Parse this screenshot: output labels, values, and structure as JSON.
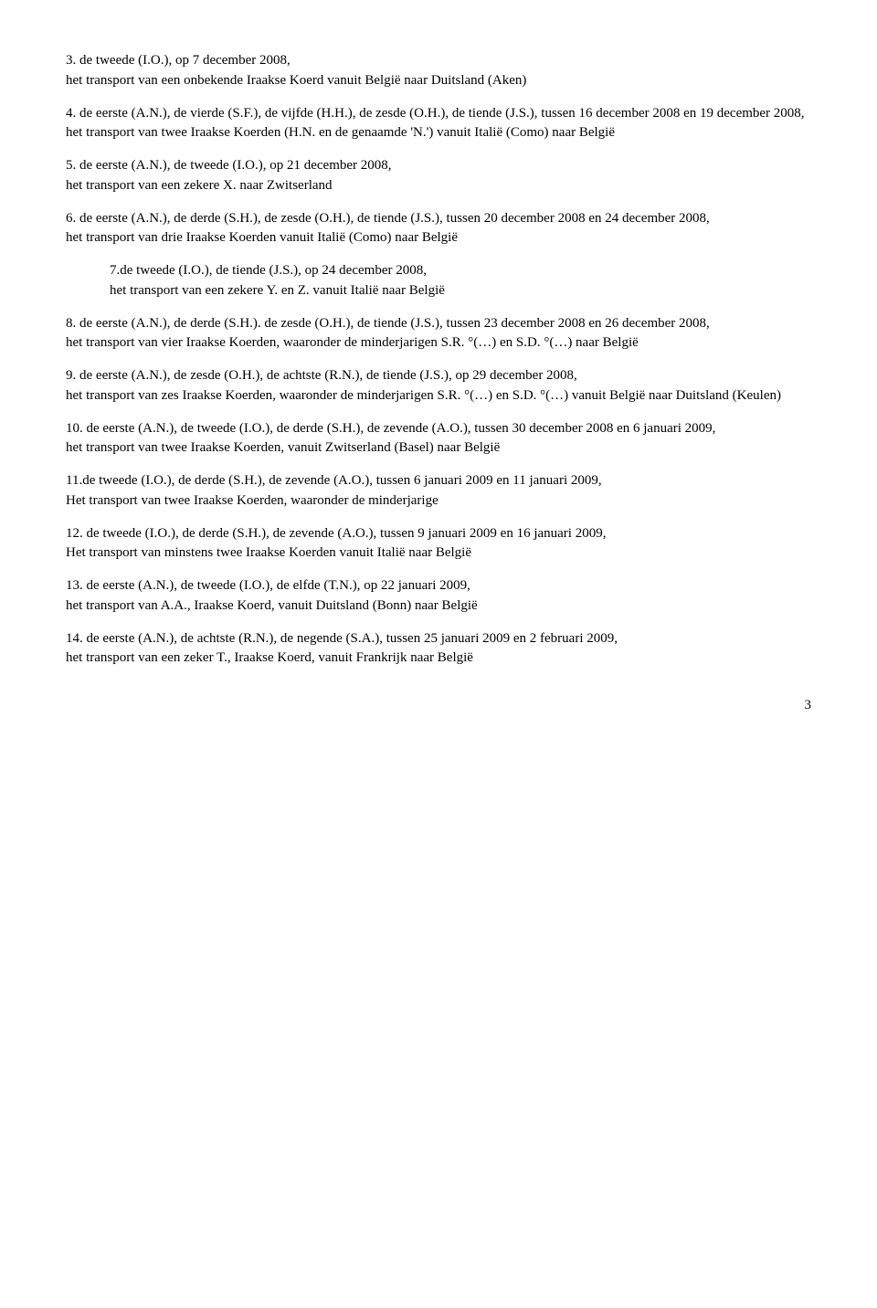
{
  "paragraphs": [
    {
      "text": "3. de tweede (I.O.), op 7 december 2008,\nhet transport van een onbekende Iraakse Koerd vanuit België naar Duitsland (Aken)"
    },
    {
      "text": "4.     de eerste (A.N.), de vierde (S.F.), de vijfde (H.H.), de zesde (O.H.), de tiende (J.S.), tussen 16 december 2008 en 19 december 2008,\nhet transport van twee Iraakse Koerden (H.N. en de genaamde 'N.') vanuit Italië (Como) naar België"
    },
    {
      "text": "5. de eerste (A.N.), de tweede (I.O.), op 21 december 2008,\nhet transport van een zekere X. naar Zwitserland"
    },
    {
      "text": "6. de eerste (A.N.), de derde (S.H.), de zesde (O.H.), de tiende (J.S.), tussen 20 december 2008 en 24 december 2008,\nhet transport van drie Iraakse Koerden vanuit Italië (Como) naar België"
    },
    {
      "text": "7.de tweede (I.O.), de tiende (J.S.), op 24 december 2008,\nhet transport van een zekere Y. en Z. vanuit Italië naar België",
      "indent": true
    },
    {
      "text": "8. de eerste (A.N.), de derde (S.H.). de zesde (O.H.), de tiende (J.S.), tussen 23 december 2008 en 26 december 2008,\nhet transport van vier Iraakse Koerden, waaronder de minderjarigen S.R. °(…) en S.D. °(…) naar België"
    },
    {
      "text": "9. de eerste (A.N.), de zesde (O.H.), de achtste (R.N.), de tiende (J.S.), op 29 december 2008,\nhet transport van zes Iraakse Koerden, waaronder de minderjarigen S.R. °(…) en S.D. °(…) vanuit België naar Duitsland (Keulen)"
    },
    {
      "text": "10. de eerste (A.N.), de tweede (I.O.), de derde (S.H.), de zevende (A.O.), tussen 30 december 2008 en 6 januari 2009,\nhet transport van twee Iraakse Koerden, vanuit Zwitserland (Basel) naar België"
    },
    {
      "text": "11.de tweede (I.O.), de derde (S.H.), de zevende (A.O.), tussen 6 januari 2009 en 11 januari 2009,\nHet transport van twee Iraakse Koerden, waaronder de minderjarige"
    },
    {
      "text": "12. de tweede (I.O.), de derde (S.H.), de zevende (A.O.), tussen 9 januari 2009 en 16 januari 2009,\nHet transport van minstens twee Iraakse Koerden vanuit Italië naar België"
    },
    {
      "text": "13. de eerste (A.N.), de tweede (I.O.), de elfde (T.N.), op 22 januari 2009,\nhet transport van A.A., Iraakse Koerd, vanuit Duitsland (Bonn) naar België"
    },
    {
      "text": "14. de eerste (A.N.), de achtste (R.N.), de negende (S.A.), tussen 25 januari 2009 en 2 februari 2009,\nhet transport van een zeker T., Iraakse Koerd, vanuit Frankrijk naar België"
    }
  ],
  "page_number": "3"
}
